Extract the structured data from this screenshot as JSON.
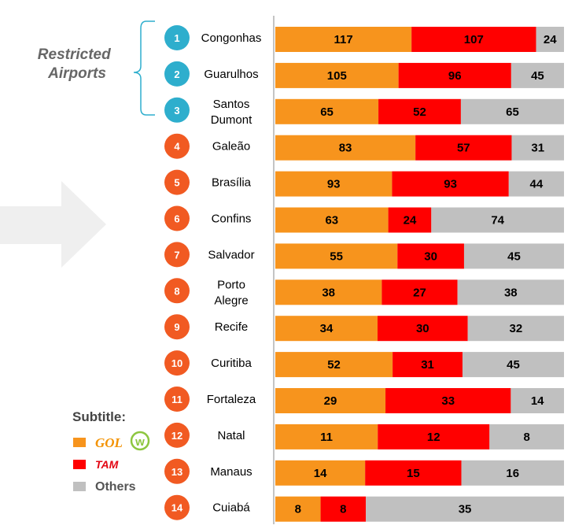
{
  "restricted_label": [
    "Restricted",
    "Airports"
  ],
  "legend": {
    "title": "Subtitle:",
    "items": [
      {
        "key": "gol",
        "logo_text": "GOL",
        "color": "#f7941d"
      },
      {
        "key": "tam",
        "logo_text": "TAM",
        "color": "#ff0000"
      },
      {
        "key": "others",
        "label": "Others",
        "color": "#c0c0c0"
      }
    ]
  },
  "colors": {
    "gol": "#f7941d",
    "tam": "#ff0000",
    "others": "#c0c0c0",
    "restricted_circle": "#2eaecd",
    "other_circle": "#f15a22",
    "bracket": "#2eaecd",
    "arrow": "#efefef"
  },
  "chart_data": {
    "type": "bar",
    "stacked": true,
    "orientation": "horizontal",
    "normalized": true,
    "categories": [
      {
        "rank": "1",
        "name": [
          "Congonhas"
        ],
        "restricted": true
      },
      {
        "rank": "2",
        "name": [
          "Guarulhos"
        ],
        "restricted": true
      },
      {
        "rank": "3",
        "name": [
          "Santos",
          "Dumont"
        ],
        "restricted": true
      },
      {
        "rank": "4",
        "name": [
          "Galeão"
        ],
        "restricted": false
      },
      {
        "rank": "5",
        "name": [
          "Brasília"
        ],
        "restricted": false
      },
      {
        "rank": "6",
        "name": [
          "Confins"
        ],
        "restricted": false
      },
      {
        "rank": "7",
        "name": [
          "Salvador"
        ],
        "restricted": false
      },
      {
        "rank": "8",
        "name": [
          "Porto",
          "Alegre"
        ],
        "restricted": false
      },
      {
        "rank": "9",
        "name": [
          "Recife"
        ],
        "restricted": false
      },
      {
        "rank": "10",
        "name": [
          "Curitiba"
        ],
        "restricted": false
      },
      {
        "rank": "11",
        "name": [
          "Fortaleza"
        ],
        "restricted": false
      },
      {
        "rank": "12",
        "name": [
          "Natal"
        ],
        "restricted": false
      },
      {
        "rank": "13",
        "name": [
          "Manaus"
        ],
        "restricted": false
      },
      {
        "rank": "14",
        "name": [
          "Cuiabá"
        ],
        "restricted": false
      }
    ],
    "series": [
      {
        "key": "gol",
        "values": [
          117,
          105,
          65,
          83,
          93,
          63,
          55,
          38,
          34,
          52,
          29,
          11,
          14,
          8
        ]
      },
      {
        "key": "tam",
        "values": [
          107,
          96,
          52,
          57,
          93,
          24,
          30,
          27,
          30,
          31,
          33,
          12,
          15,
          8
        ]
      },
      {
        "name": "Others",
        "key": "others",
        "values": [
          24,
          45,
          65,
          31,
          44,
          74,
          45,
          38,
          32,
          45,
          14,
          8,
          16,
          35
        ]
      }
    ]
  }
}
